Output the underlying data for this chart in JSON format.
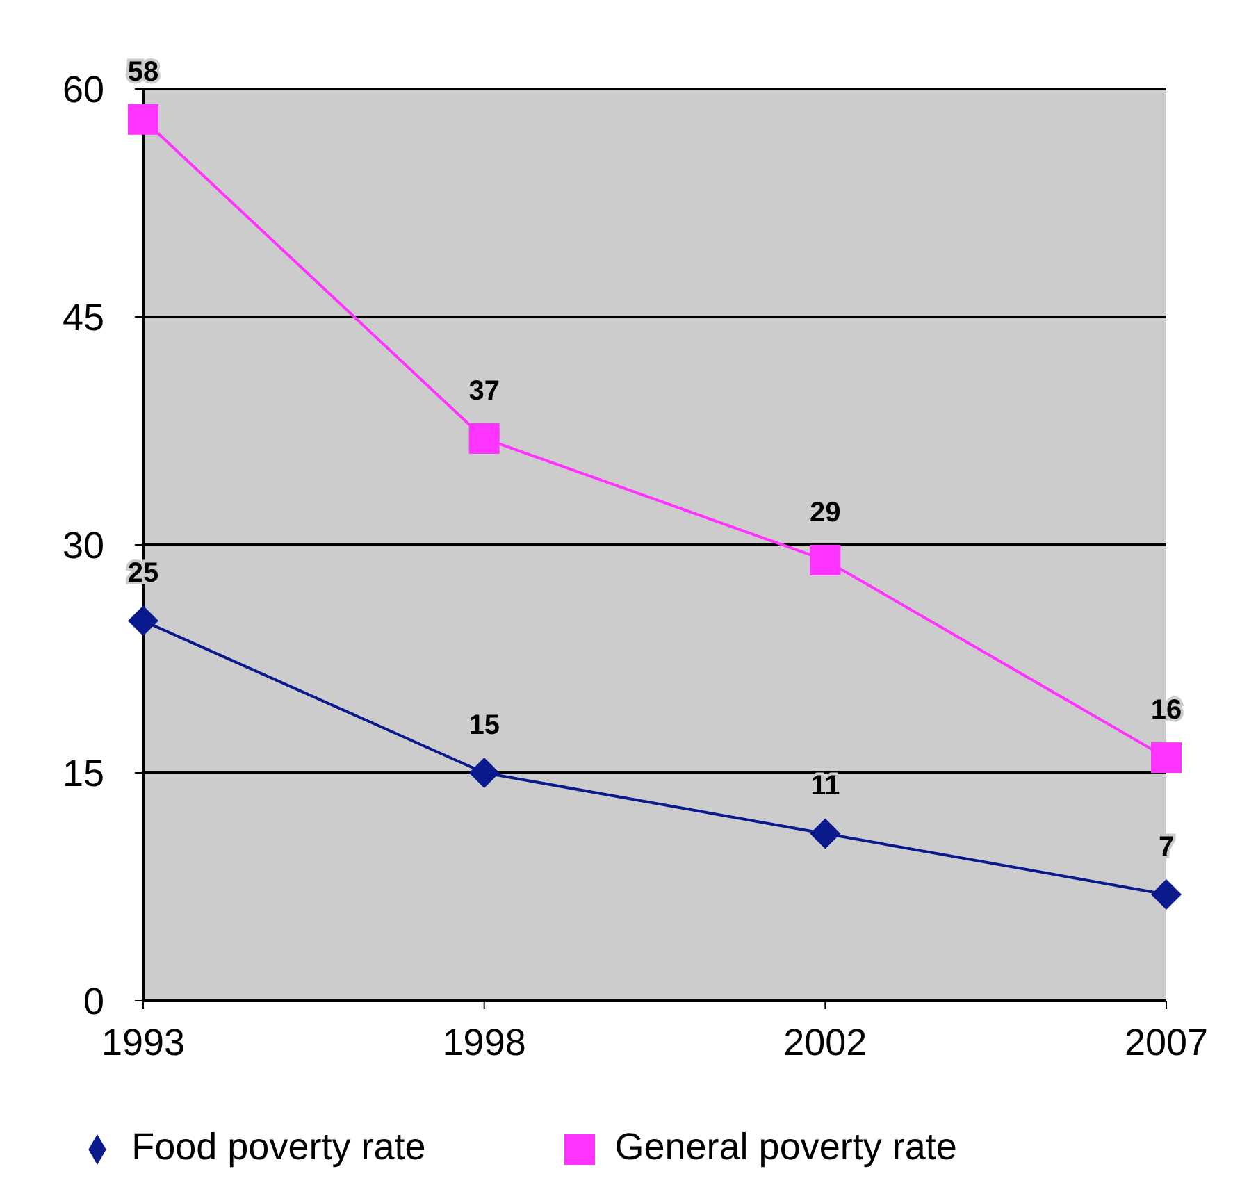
{
  "chart_data": {
    "type": "line",
    "categories": [
      "1993",
      "1998",
      "2002",
      "2007"
    ],
    "series": [
      {
        "name": "Food poverty rate",
        "color": "#0a1a8c",
        "marker": "diamond",
        "values": [
          25,
          15,
          11,
          7
        ]
      },
      {
        "name": "General poverty rate",
        "color": "#ff33ff",
        "marker": "square",
        "values": [
          58,
          37,
          29,
          16
        ]
      }
    ],
    "ylim": [
      0,
      60
    ],
    "yticks": [
      0,
      15,
      30,
      45,
      60
    ],
    "grid": "y",
    "legend": "bottom",
    "data_labels": true,
    "line_style": "solid"
  }
}
